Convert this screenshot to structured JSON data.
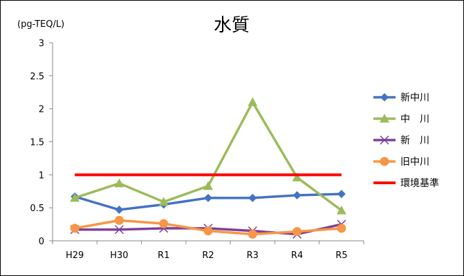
{
  "chart_data": {
    "type": "line",
    "title": "水質",
    "ylabel": "(pg-TEQ/L)",
    "xlabel": "",
    "categories": [
      "H29",
      "H30",
      "R1",
      "R2",
      "R3",
      "R4",
      "R5"
    ],
    "ylim": [
      0,
      3
    ],
    "yticks": [
      "0",
      "0.5",
      "1",
      "1.5",
      "2",
      "2.5",
      "3"
    ],
    "legend_position": "right",
    "grid": false,
    "series": [
      {
        "name": "新中川",
        "values": [
          0.67,
          0.47,
          0.55,
          0.65,
          0.65,
          0.69,
          0.71
        ],
        "color": "#4472C4",
        "marker": "diamond"
      },
      {
        "name": "中　川",
        "values": [
          0.65,
          0.87,
          0.59,
          0.83,
          2.1,
          0.96,
          0.46
        ],
        "color": "#9BBB59",
        "marker": "triangle"
      },
      {
        "name": "新　川",
        "values": [
          0.17,
          0.17,
          0.19,
          0.19,
          0.15,
          0.1,
          0.25
        ],
        "color": "#7F3F98",
        "marker": "x"
      },
      {
        "name": "旧中川",
        "values": [
          0.19,
          0.31,
          0.26,
          0.15,
          0.1,
          0.14,
          0.19
        ],
        "color": "#F79646",
        "marker": "circle"
      },
      {
        "name": "環境基準",
        "values": [
          1,
          1,
          1,
          1,
          1,
          1,
          1
        ],
        "color": "#FF0000",
        "marker": "none"
      }
    ]
  }
}
